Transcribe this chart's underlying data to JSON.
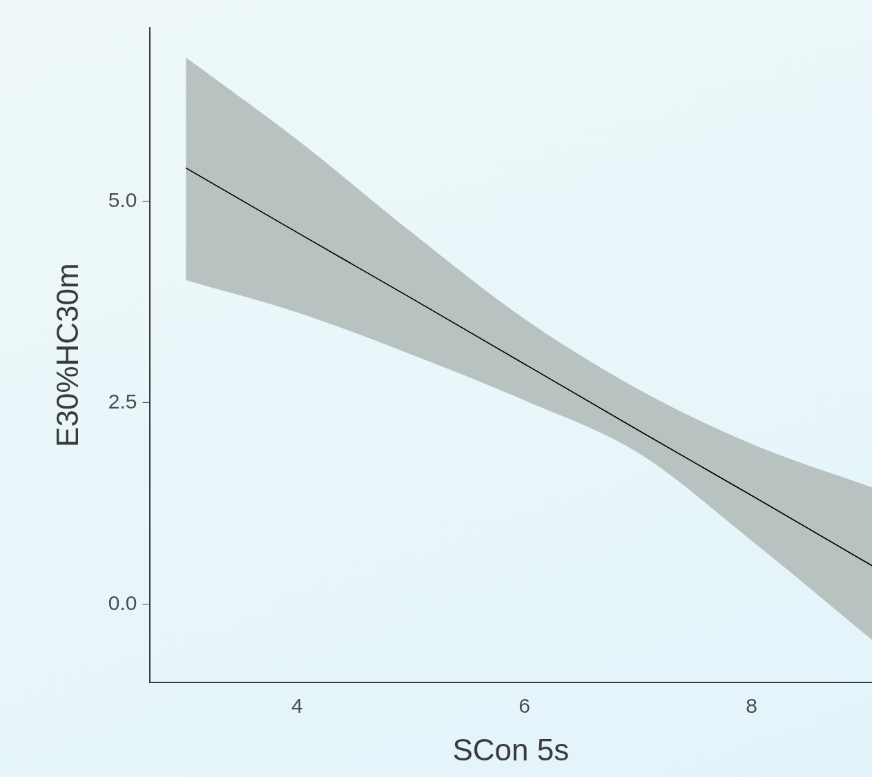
{
  "chart_data": {
    "type": "line",
    "xlabel": "SCon 5s",
    "ylabel": "E30%HC30m",
    "xlim": [
      2.7,
      9.06
    ],
    "ylim": [
      -0.97,
      7.15
    ],
    "xticks": [
      4,
      6,
      8
    ],
    "yticks": [
      {
        "value": 0,
        "label": "0.0"
      },
      {
        "value": 2.5,
        "label": "2.5"
      },
      {
        "value": 5,
        "label": "5.0"
      }
    ],
    "grid": false,
    "legend": false,
    "marker": "none",
    "line_style": "solid",
    "series": [
      {
        "color": "#000000",
        "x": [
          3.02,
          4,
          5,
          6,
          7,
          8,
          9.06
        ],
        "values": [
          5.41,
          4.61,
          3.8,
          2.98,
          2.16,
          1.35,
          0.48
        ],
        "lower": [
          4.02,
          3.62,
          3.1,
          2.53,
          1.88,
          0.79,
          -0.44
        ],
        "upper": [
          6.78,
          5.76,
          4.62,
          3.54,
          2.67,
          1.99,
          1.45
        ]
      }
    ]
  }
}
